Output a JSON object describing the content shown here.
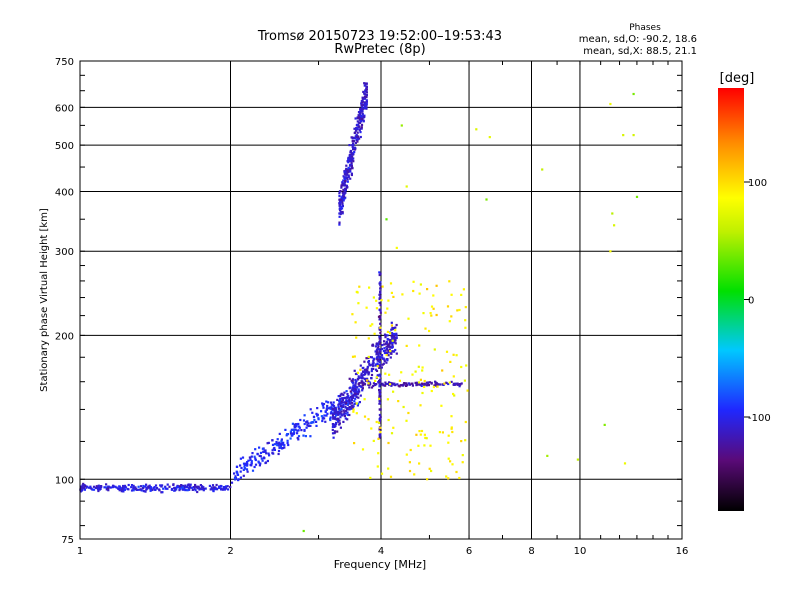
{
  "chart_data": {
    "type": "scatter",
    "title": "Tromsø 20150723 19:52:00–19:53:43",
    "subtitle": "RwPretec (8p)",
    "xlabel": "Frequency [MHz]",
    "ylabel": "Stationary phase Virtual Height [km]",
    "x_scale": "log",
    "y_scale": "log",
    "xlim": [
      1,
      16
    ],
    "ylim": [
      75,
      750
    ],
    "x_ticks": [
      1,
      2,
      4,
      6,
      8,
      10,
      16
    ],
    "y_ticks": [
      75,
      100,
      200,
      300,
      400,
      500,
      600,
      750
    ],
    "grid": true,
    "stats": {
      "heading": "Phases",
      "line_o": "mean, sd,O: -90.2, 18.6",
      "line_x": "mean, sd,X:  88.5, 21.1"
    },
    "colorbar": {
      "label": "[deg]",
      "range": [
        -180,
        180
      ],
      "ticks": [
        100,
        0,
        -100
      ]
    },
    "series": [
      {
        "name": "baseline",
        "phase": -105,
        "x_range": [
          1.0,
          2.0
        ],
        "y_center": 96,
        "y_spread": 0.025,
        "count": 260
      },
      {
        "name": "low-rise",
        "phase": -95,
        "x_range": [
          2.0,
          3.6
        ],
        "y_center_start": 100,
        "y_center_end": 150,
        "y_spread": 0.08,
        "count": 300
      },
      {
        "name": "F-layer cloud",
        "phase": -110,
        "x_range": [
          3.2,
          4.3
        ],
        "y_center_start": 130,
        "y_center_end": 200,
        "y_spread": 0.12,
        "count": 380
      },
      {
        "name": "vertical spike",
        "phase": -115,
        "x": 3.98,
        "y_range": [
          120,
          290
        ],
        "count": 90
      },
      {
        "name": "horizontal band",
        "phase": -120,
        "x_range": [
          3.6,
          5.8
        ],
        "y": 158,
        "y_spread": 0.015,
        "count": 120
      },
      {
        "name": "upper trace",
        "phase": -110,
        "x_range": [
          3.3,
          3.75
        ],
        "y_range": [
          370,
          650
        ],
        "count": 320
      },
      {
        "name": "X-mode echoes",
        "phase": 90,
        "x_range": [
          3.5,
          6.0
        ],
        "y_range": [
          100,
          260
        ],
        "count": 180
      },
      {
        "name": "scattered high",
        "phase": 60,
        "points": [
          [
            4.4,
            550
          ],
          [
            4.1,
            350
          ],
          [
            6.2,
            540
          ],
          [
            4.5,
            410
          ],
          [
            11.5,
            610
          ],
          [
            12.8,
            640
          ],
          [
            13.0,
            390
          ],
          [
            11.6,
            360
          ],
          [
            11.7,
            340
          ],
          [
            11.5,
            300
          ],
          [
            6.6,
            520
          ],
          [
            12.2,
            525
          ],
          [
            12.8,
            525
          ],
          [
            8.4,
            445
          ],
          [
            6.5,
            385
          ],
          [
            11.2,
            130
          ],
          [
            12.3,
            108
          ],
          [
            8.6,
            112
          ],
          [
            4.3,
            305
          ],
          [
            2.8,
            78
          ],
          [
            9.9,
            110
          ]
        ]
      }
    ]
  }
}
